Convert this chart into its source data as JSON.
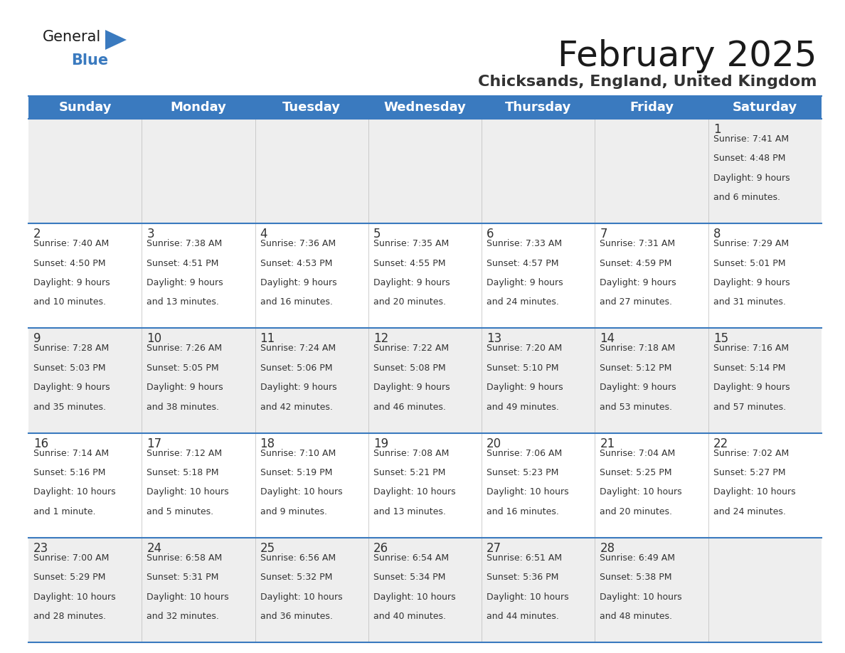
{
  "title": "February 2025",
  "subtitle": "Chicksands, England, United Kingdom",
  "header_color": "#3a7abf",
  "header_text_color": "#ffffff",
  "day_names": [
    "Sunday",
    "Monday",
    "Tuesday",
    "Wednesday",
    "Thursday",
    "Friday",
    "Saturday"
  ],
  "bg_color": "#ffffff",
  "cell_bg_even": "#eeeeee",
  "cell_bg_odd": "#ffffff",
  "day_num_color": "#333333",
  "text_color": "#333333",
  "line_color": "#3a7abf",
  "days": [
    {
      "day": 1,
      "col": 6,
      "row": 0,
      "sunrise": "7:41 AM",
      "sunset": "4:48 PM",
      "daylight": "9 hours and 6 minutes"
    },
    {
      "day": 2,
      "col": 0,
      "row": 1,
      "sunrise": "7:40 AM",
      "sunset": "4:50 PM",
      "daylight": "9 hours and 10 minutes"
    },
    {
      "day": 3,
      "col": 1,
      "row": 1,
      "sunrise": "7:38 AM",
      "sunset": "4:51 PM",
      "daylight": "9 hours and 13 minutes"
    },
    {
      "day": 4,
      "col": 2,
      "row": 1,
      "sunrise": "7:36 AM",
      "sunset": "4:53 PM",
      "daylight": "9 hours and 16 minutes"
    },
    {
      "day": 5,
      "col": 3,
      "row": 1,
      "sunrise": "7:35 AM",
      "sunset": "4:55 PM",
      "daylight": "9 hours and 20 minutes"
    },
    {
      "day": 6,
      "col": 4,
      "row": 1,
      "sunrise": "7:33 AM",
      "sunset": "4:57 PM",
      "daylight": "9 hours and 24 minutes"
    },
    {
      "day": 7,
      "col": 5,
      "row": 1,
      "sunrise": "7:31 AM",
      "sunset": "4:59 PM",
      "daylight": "9 hours and 27 minutes"
    },
    {
      "day": 8,
      "col": 6,
      "row": 1,
      "sunrise": "7:29 AM",
      "sunset": "5:01 PM",
      "daylight": "9 hours and 31 minutes"
    },
    {
      "day": 9,
      "col": 0,
      "row": 2,
      "sunrise": "7:28 AM",
      "sunset": "5:03 PM",
      "daylight": "9 hours and 35 minutes"
    },
    {
      "day": 10,
      "col": 1,
      "row": 2,
      "sunrise": "7:26 AM",
      "sunset": "5:05 PM",
      "daylight": "9 hours and 38 minutes"
    },
    {
      "day": 11,
      "col": 2,
      "row": 2,
      "sunrise": "7:24 AM",
      "sunset": "5:06 PM",
      "daylight": "9 hours and 42 minutes"
    },
    {
      "day": 12,
      "col": 3,
      "row": 2,
      "sunrise": "7:22 AM",
      "sunset": "5:08 PM",
      "daylight": "9 hours and 46 minutes"
    },
    {
      "day": 13,
      "col": 4,
      "row": 2,
      "sunrise": "7:20 AM",
      "sunset": "5:10 PM",
      "daylight": "9 hours and 49 minutes"
    },
    {
      "day": 14,
      "col": 5,
      "row": 2,
      "sunrise": "7:18 AM",
      "sunset": "5:12 PM",
      "daylight": "9 hours and 53 minutes"
    },
    {
      "day": 15,
      "col": 6,
      "row": 2,
      "sunrise": "7:16 AM",
      "sunset": "5:14 PM",
      "daylight": "9 hours and 57 minutes"
    },
    {
      "day": 16,
      "col": 0,
      "row": 3,
      "sunrise": "7:14 AM",
      "sunset": "5:16 PM",
      "daylight": "10 hours and 1 minute"
    },
    {
      "day": 17,
      "col": 1,
      "row": 3,
      "sunrise": "7:12 AM",
      "sunset": "5:18 PM",
      "daylight": "10 hours and 5 minutes"
    },
    {
      "day": 18,
      "col": 2,
      "row": 3,
      "sunrise": "7:10 AM",
      "sunset": "5:19 PM",
      "daylight": "10 hours and 9 minutes"
    },
    {
      "day": 19,
      "col": 3,
      "row": 3,
      "sunrise": "7:08 AM",
      "sunset": "5:21 PM",
      "daylight": "10 hours and 13 minutes"
    },
    {
      "day": 20,
      "col": 4,
      "row": 3,
      "sunrise": "7:06 AM",
      "sunset": "5:23 PM",
      "daylight": "10 hours and 16 minutes"
    },
    {
      "day": 21,
      "col": 5,
      "row": 3,
      "sunrise": "7:04 AM",
      "sunset": "5:25 PM",
      "daylight": "10 hours and 20 minutes"
    },
    {
      "day": 22,
      "col": 6,
      "row": 3,
      "sunrise": "7:02 AM",
      "sunset": "5:27 PM",
      "daylight": "10 hours and 24 minutes"
    },
    {
      "day": 23,
      "col": 0,
      "row": 4,
      "sunrise": "7:00 AM",
      "sunset": "5:29 PM",
      "daylight": "10 hours and 28 minutes"
    },
    {
      "day": 24,
      "col": 1,
      "row": 4,
      "sunrise": "6:58 AM",
      "sunset": "5:31 PM",
      "daylight": "10 hours and 32 minutes"
    },
    {
      "day": 25,
      "col": 2,
      "row": 4,
      "sunrise": "6:56 AM",
      "sunset": "5:32 PM",
      "daylight": "10 hours and 36 minutes"
    },
    {
      "day": 26,
      "col": 3,
      "row": 4,
      "sunrise": "6:54 AM",
      "sunset": "5:34 PM",
      "daylight": "10 hours and 40 minutes"
    },
    {
      "day": 27,
      "col": 4,
      "row": 4,
      "sunrise": "6:51 AM",
      "sunset": "5:36 PM",
      "daylight": "10 hours and 44 minutes"
    },
    {
      "day": 28,
      "col": 5,
      "row": 4,
      "sunrise": "6:49 AM",
      "sunset": "5:38 PM",
      "daylight": "10 hours and 48 minutes"
    }
  ],
  "num_rows": 5,
  "num_cols": 7,
  "title_fontsize": 36,
  "subtitle_fontsize": 16,
  "header_fontsize": 13,
  "day_num_fontsize": 12,
  "info_fontsize": 9
}
